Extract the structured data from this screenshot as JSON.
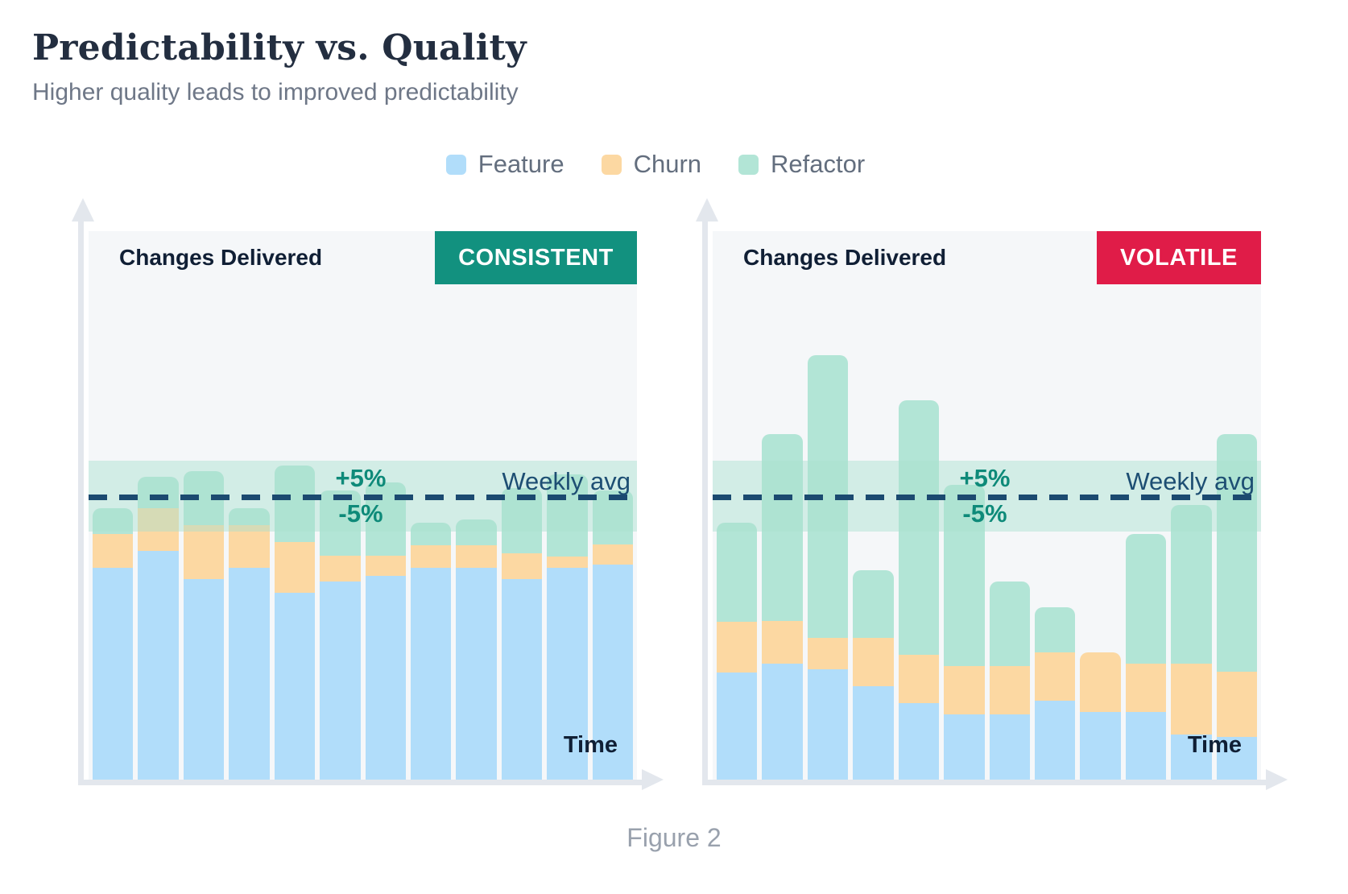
{
  "page": {
    "title": "Predictability vs. Quality",
    "subtitle": "Higher quality leads to improved predictability",
    "caption": "Figure 2"
  },
  "legend": [
    {
      "label": "Feature",
      "color": "#b1ddfa"
    },
    {
      "label": "Churn",
      "color": "#fcd8a2"
    },
    {
      "label": "Refactor",
      "color": "#b2e5d6"
    }
  ],
  "colors": {
    "panel_background": "#f5f7f9",
    "axis": "#e3e7ed",
    "dash_line": "#1b4a70",
    "avg_band": "rgba(168,223,206,0.45)",
    "plus_minus_text": "#0e8a79",
    "avg_text": "#1d4e73",
    "heading_text": "#101f35",
    "title_text": "#232e40",
    "subtitle_text": "#6e7787",
    "caption_text": "#99a1ad"
  },
  "chart_data": [
    {
      "type": "bar",
      "stacked": true,
      "badge": {
        "label": "CONSISTENT",
        "color": "#12917f"
      },
      "inner_ylabel": "Changes Delivered",
      "xlabel": "Time",
      "avg_line": {
        "label": "Weekly avg",
        "value": 100,
        "plus_label": "+5%",
        "minus_label": "-5%"
      },
      "units": "percent of weekly average (weekly avg = 100)",
      "n_bars": 12,
      "ylim": [
        0,
        194
      ],
      "series": [
        {
          "name": "Feature",
          "values": [
            75,
            81,
            71,
            75,
            66,
            70,
            72,
            75,
            75,
            71,
            75,
            76
          ]
        },
        {
          "name": "Churn",
          "values": [
            12,
            15,
            19,
            15,
            18,
            9,
            7,
            8,
            8,
            9,
            4,
            7
          ]
        },
        {
          "name": "Refactor",
          "values": [
            9,
            11,
            19,
            6,
            27,
            23,
            26,
            8,
            9,
            23,
            29,
            19
          ]
        }
      ]
    },
    {
      "type": "bar",
      "stacked": true,
      "badge": {
        "label": "VOLATILE",
        "color": "#e01c48"
      },
      "inner_ylabel": "Changes Delivered",
      "xlabel": "Time",
      "avg_line": {
        "label": "Weekly avg",
        "value": 100,
        "plus_label": "+5%",
        "minus_label": "-5%"
      },
      "units": "percent of weekly average (weekly avg = 100)",
      "n_bars": 12,
      "ylim": [
        0,
        194
      ],
      "series": [
        {
          "name": "Feature",
          "values": [
            38,
            41,
            39,
            33,
            27,
            23,
            23,
            28,
            24,
            24,
            16,
            15
          ]
        },
        {
          "name": "Churn",
          "values": [
            18,
            15,
            11,
            17,
            17,
            17,
            17,
            17,
            21,
            17,
            25,
            23
          ]
        },
        {
          "name": "Refactor",
          "values": [
            35,
            66,
            100,
            24,
            90,
            64,
            30,
            16,
            0,
            46,
            56,
            84
          ]
        }
      ]
    }
  ]
}
